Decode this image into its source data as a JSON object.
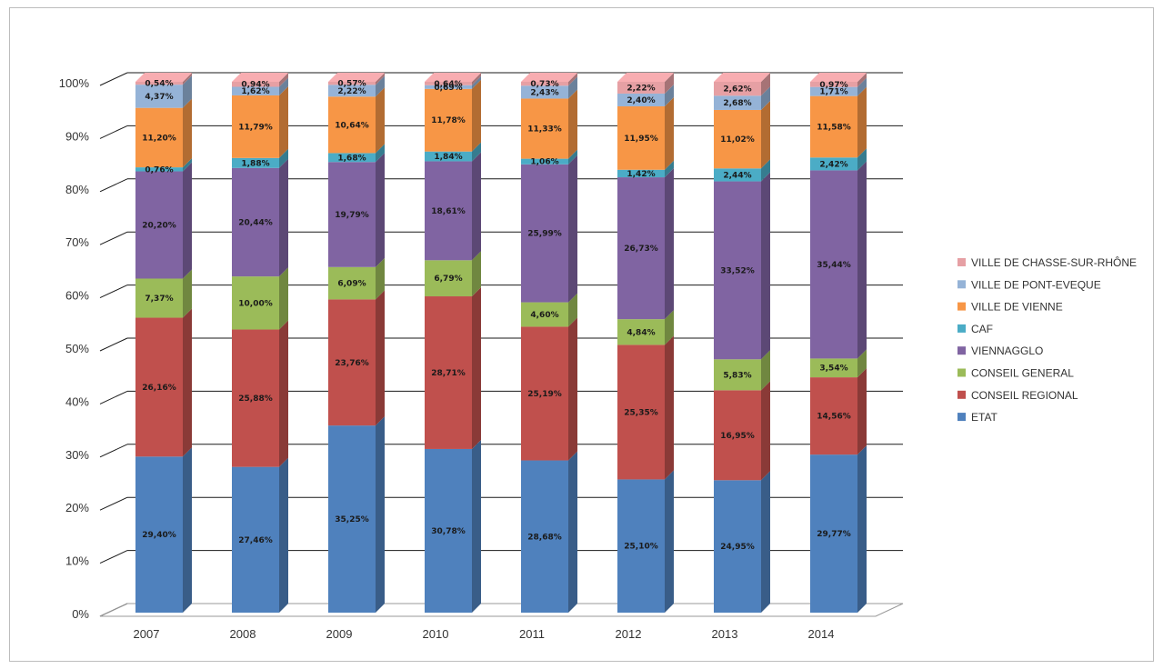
{
  "chart_data": {
    "type": "bar",
    "stacked": true,
    "percent_stacked": true,
    "three_d": true,
    "categories": [
      "2007",
      "2008",
      "2009",
      "2010",
      "2011",
      "2012",
      "2013",
      "2014"
    ],
    "y_ticks": [
      "0%",
      "10%",
      "20%",
      "30%",
      "40%",
      "50%",
      "60%",
      "70%",
      "80%",
      "90%",
      "100%"
    ],
    "ylim": [
      0,
      100
    ],
    "grid": true,
    "legend_position": "right",
    "series": [
      {
        "name": "ETAT",
        "color": "#4f81bd",
        "values": [
          29.4,
          27.46,
          35.25,
          30.78,
          28.68,
          25.1,
          24.95,
          29.77
        ],
        "labels": [
          "29,40%",
          "27,46%",
          "35,25%",
          "30,78%",
          "28,68%",
          "25,10%",
          "24,95%",
          "29,77%"
        ]
      },
      {
        "name": "CONSEIL REGIONAL",
        "color": "#c0504d",
        "values": [
          26.16,
          25.88,
          23.76,
          28.71,
          25.19,
          25.35,
          16.95,
          14.56
        ],
        "labels": [
          "26,16%",
          "25,88%",
          "23,76%",
          "28,71%",
          "25,19%",
          "25,35%",
          "16,95%",
          "14,56%"
        ]
      },
      {
        "name": "CONSEIL GENERAL",
        "color": "#9bbb59",
        "values": [
          7.37,
          10.0,
          6.09,
          6.79,
          4.6,
          4.84,
          5.83,
          3.54
        ],
        "labels": [
          "7,37%",
          "10,00%",
          "6,09%",
          "6,79%",
          "4,60%",
          "4,84%",
          "5,83%",
          "3,54%"
        ]
      },
      {
        "name": "VIENNAGGLO",
        "color": "#8064a2",
        "values": [
          20.2,
          20.44,
          19.79,
          18.61,
          25.99,
          26.73,
          33.52,
          35.44
        ],
        "labels": [
          "20,20%",
          "20,44%",
          "19,79%",
          "18,61%",
          "25,99%",
          "26,73%",
          "33,52%",
          "35,44%"
        ]
      },
      {
        "name": "CAF",
        "color": "#4bacc6",
        "values": [
          0.76,
          1.88,
          1.68,
          1.84,
          1.06,
          1.42,
          2.44,
          2.42
        ],
        "labels": [
          "0,76%",
          "1,88%",
          "1,68%",
          "1,84%",
          "1,06%",
          "1,42%",
          "2,44%",
          "2,42%"
        ]
      },
      {
        "name": "VILLE DE VIENNE",
        "color": "#f79646",
        "values": [
          11.2,
          11.79,
          10.64,
          11.78,
          11.33,
          11.95,
          11.02,
          11.58
        ],
        "labels": [
          "11,20%",
          "11,79%",
          "10,64%",
          "11,78%",
          "11,33%",
          "11,95%",
          "11,02%",
          "11,58%"
        ]
      },
      {
        "name": "VILLE DE PONT-EVEQUE",
        "color": "#95b3d7",
        "values": [
          4.37,
          1.62,
          2.22,
          0.69,
          2.43,
          2.4,
          2.68,
          1.71
        ],
        "labels": [
          "4,37%",
          "1,62%",
          "2,22%",
          "0,69%",
          "2,43%",
          "2,40%",
          "2,68%",
          "1,71%"
        ]
      },
      {
        "name": "VILLE DE CHASSE-SUR-RHÔNE",
        "color": "#e6a0a4",
        "values": [
          0.54,
          0.94,
          0.57,
          0.64,
          0.73,
          2.22,
          2.62,
          0.97
        ],
        "labels": [
          "0,54%",
          "0,94%",
          "0,57%",
          "0,64%",
          "0,73%",
          "2,22%",
          "2,62%",
          "0,97%"
        ]
      }
    ]
  }
}
